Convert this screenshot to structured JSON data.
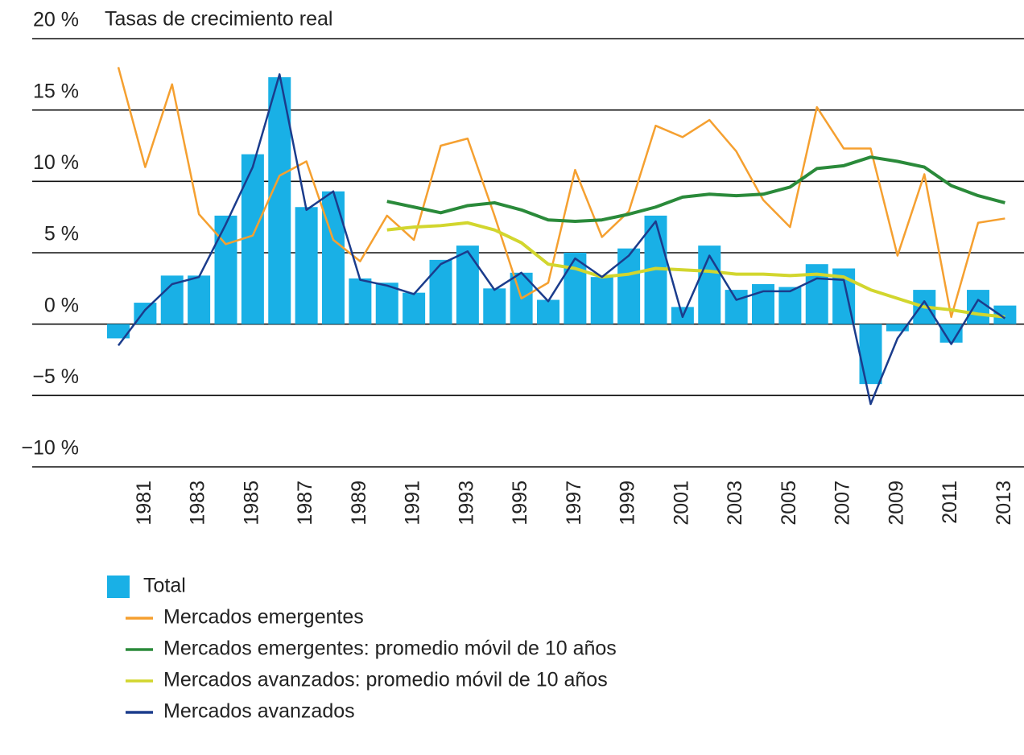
{
  "chart_data": {
    "type": "bar",
    "title": "Tasas de crecimiento real",
    "categories": [
      null,
      "1981",
      null,
      "1983",
      null,
      "1985",
      null,
      "1987",
      null,
      "1989",
      null,
      "1991",
      null,
      "1993",
      null,
      "1995",
      null,
      "1997",
      null,
      "1999",
      null,
      "2001",
      null,
      "2003",
      null,
      "2005",
      null,
      "2007",
      null,
      "2009",
      null,
      "2011",
      null,
      "2013"
    ],
    "ylim": [
      -10,
      20
    ],
    "yticks": [
      {
        "value": -10,
        "label": "−10 %"
      },
      {
        "value": -5,
        "label": "−5 %"
      },
      {
        "value": 0,
        "label": "0 %"
      },
      {
        "value": 5,
        "label": "5 %"
      },
      {
        "value": 10,
        "label": "10 %"
      },
      {
        "value": 15,
        "label": "15 %"
      },
      {
        "value": 20,
        "label": "20 %"
      }
    ],
    "grid": true,
    "legend": "bottom",
    "series": [
      {
        "name": "Total",
        "type": "bar",
        "color": "#19b0e6",
        "values": [
          -1.0,
          1.5,
          3.4,
          3.4,
          7.6,
          11.9,
          17.3,
          8.2,
          9.3,
          3.2,
          2.9,
          2.2,
          4.5,
          5.5,
          2.5,
          3.6,
          1.7,
          5.0,
          3.3,
          5.3,
          7.6,
          1.2,
          5.5,
          2.4,
          2.8,
          2.6,
          4.2,
          3.9,
          -4.2,
          -0.5,
          2.4,
          -1.3,
          2.4,
          1.3
        ]
      },
      {
        "name": "Mercados emergentes",
        "type": "line",
        "color": "#f5a030",
        "values": [
          18.0,
          11.0,
          16.8,
          7.7,
          5.6,
          6.2,
          10.4,
          11.4,
          5.9,
          4.4,
          7.6,
          5.9,
          12.5,
          13.0,
          7.6,
          1.8,
          2.9,
          10.8,
          6.1,
          7.9,
          13.9,
          13.1,
          14.3,
          12.1,
          8.7,
          6.8,
          15.2,
          12.3,
          12.3,
          4.8,
          10.5,
          0.5,
          7.1,
          7.4
        ]
      },
      {
        "name": "Mercados emergentes: promedio móvil de 10 años",
        "type": "line",
        "color": "#2a8a3a",
        "values": [
          null,
          null,
          null,
          null,
          null,
          null,
          null,
          null,
          null,
          null,
          8.6,
          8.2,
          7.8,
          8.3,
          8.5,
          8.0,
          7.3,
          7.2,
          7.3,
          7.7,
          8.2,
          8.9,
          9.1,
          9.0,
          9.1,
          9.6,
          10.9,
          11.1,
          11.7,
          11.4,
          11.0,
          9.7,
          9.0,
          8.5
        ]
      },
      {
        "name": "Mercados avanzados: promedio móvil de 10 años",
        "type": "line",
        "color": "#d2d62e",
        "values": [
          null,
          null,
          null,
          null,
          null,
          null,
          null,
          null,
          null,
          null,
          6.6,
          6.8,
          6.9,
          7.1,
          6.6,
          5.7,
          4.2,
          3.9,
          3.3,
          3.5,
          3.9,
          3.8,
          3.7,
          3.5,
          3.5,
          3.4,
          3.5,
          3.3,
          2.4,
          1.8,
          1.2,
          1.0,
          0.7,
          0.5
        ]
      },
      {
        "name": "Mercados avanzados",
        "type": "line",
        "color": "#1b3c8c",
        "values": [
          -1.5,
          1.0,
          2.8,
          3.3,
          7.0,
          11.0,
          17.5,
          8.0,
          9.3,
          3.1,
          2.7,
          2.1,
          4.2,
          5.1,
          2.4,
          3.6,
          1.6,
          4.6,
          3.3,
          4.8,
          7.2,
          0.5,
          4.8,
          1.7,
          2.3,
          2.3,
          3.2,
          3.1,
          -5.6,
          -1.0,
          1.6,
          -1.4,
          1.7,
          0.4
        ]
      }
    ]
  }
}
